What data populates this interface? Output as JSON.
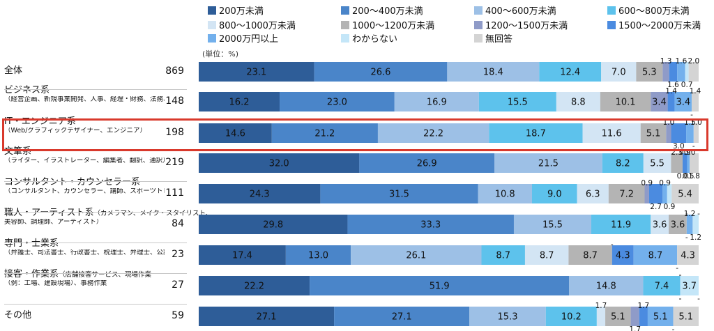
{
  "chart_data": {
    "type": "bar",
    "stacked": true,
    "orientation": "horizontal",
    "unit_label": "(単位：%)",
    "xlim": [
      0,
      100
    ],
    "legend_position": "top",
    "categories": [
      {
        "name": "全体",
        "sub": "",
        "n": "869"
      },
      {
        "name": "ビジネス系",
        "sub": "（経営企画、新規事業開発、人事、経理・財務、法務、広報、マーケティング、営業）",
        "n": "148"
      },
      {
        "name": "IT・エンジニア系",
        "sub": "（Web/グラフィックデザイナー、エンジニア）",
        "n": "198"
      },
      {
        "name": "文筆系",
        "sub": "（ライター、イラストレーター、編集者、翻訳、通訳）",
        "n": "219"
      },
      {
        "name": "コンサルタント・カウンセラー系",
        "sub": "（コンサルタント、カウンセラー、講師、スポーツトレーナー）",
        "n": "111"
      },
      {
        "name": "職人・アーティスト系",
        "inline": "（カメラマン、メイク・スタイリスト、",
        "sub": "美容師、調理師、アーティスト）",
        "n": "84"
      },
      {
        "name": "専門・士業系",
        "sub": "（弁護士、司法書士、行政書士、税理士、弁理士、公認会計士、社労士）",
        "n": "23"
      },
      {
        "name": "接客・作業系",
        "inline": "（店舗接客サービス、現場作業",
        "sub": "（例：工場、建設現場）、事務作業",
        "n": "27"
      },
      {
        "name": "その他",
        "sub": "",
        "n": "59"
      }
    ],
    "series": [
      {
        "name": "200万未満",
        "color": "#2e5d98",
        "values": [
          23.1,
          16.2,
          14.6,
          32.0,
          24.3,
          29.8,
          17.4,
          22.2,
          27.1
        ]
      },
      {
        "name": "200～400万未満",
        "color": "#4a85c9",
        "values": [
          26.6,
          23.0,
          21.2,
          26.9,
          31.5,
          33.3,
          13.0,
          51.9,
          27.1
        ]
      },
      {
        "name": "400～600万未満",
        "color": "#9dc0e6",
        "values": [
          18.4,
          16.9,
          22.2,
          21.5,
          10.8,
          15.5,
          26.1,
          14.8,
          15.3
        ]
      },
      {
        "name": "600～800万未満",
        "color": "#5dc2ec",
        "values": [
          12.4,
          15.5,
          18.7,
          8.2,
          9.0,
          11.9,
          8.7,
          7.4,
          10.2
        ]
      },
      {
        "name": "800～1000万未満",
        "color": "#d3e5f4",
        "values": [
          7.0,
          8.8,
          11.6,
          5.5,
          6.3,
          3.6,
          8.7,
          0,
          1.7
        ]
      },
      {
        "name": "1000～1200万未満",
        "color": "#b4b4b4",
        "values": [
          5.3,
          10.1,
          5.1,
          2.3,
          7.2,
          3.6,
          8.7,
          0,
          5.1
        ]
      },
      {
        "name": "1200～1500万未満",
        "color": "#8f9bc8",
        "values": [
          1.3,
          3.4,
          1.0,
          0.0,
          0.9,
          0,
          0,
          0,
          1.7
        ]
      },
      {
        "name": "1500～2000万未満",
        "color": "#4b8be0",
        "values": [
          1.6,
          1.4,
          3.0,
          0.9,
          2.7,
          0,
          4.3,
          0,
          1.7
        ]
      },
      {
        "name": "2000万円以上",
        "color": "#73b0ec",
        "values": [
          1.6,
          3.4,
          1.5,
          0.5,
          0.9,
          1.2,
          8.7,
          0,
          5.1
        ]
      },
      {
        "name": "わからない",
        "color": "#c4e6f8",
        "values": [
          0.7,
          0,
          0,
          0.0,
          0.9,
          1.2,
          0,
          3.7,
          0
        ]
      },
      {
        "name": "無回答",
        "color": "#d4d4d4",
        "values": [
          2.0,
          1.4,
          1.0,
          1.8,
          5.4,
          0,
          4.3,
          0,
          5.1
        ]
      }
    ],
    "value_labels": [
      [
        "23.1",
        "26.6",
        "18.4",
        "12.4",
        "7.0",
        "5.3",
        "1.3",
        "1.6",
        "1.6",
        "0.7",
        "2.0"
      ],
      [
        "16.2",
        "23.0",
        "16.9",
        "15.5",
        "8.8",
        "10.1",
        "3.4",
        "1.4",
        "3.4",
        "-",
        "1.4"
      ],
      [
        "14.6",
        "21.2",
        "22.2",
        "18.7",
        "11.6",
        "5.1",
        "1.0",
        "3.0",
        "1.5",
        "-",
        "1.0"
      ],
      [
        "32.0",
        "26.9",
        "21.5",
        "8.2",
        "5.5",
        "2.3",
        "0.0",
        "0.9",
        "0.5",
        "0.0",
        "1.8"
      ],
      [
        "24.3",
        "31.5",
        "10.8",
        "9.0",
        "6.3",
        "7.2",
        "0.9",
        "2.7",
        "0.9",
        "0.9",
        "5.4"
      ],
      [
        "29.8",
        "33.3",
        "15.5",
        "11.9",
        "3.6",
        "3.6",
        "-",
        "-",
        "1.2",
        "1.2",
        "-"
      ],
      [
        "17.4",
        "13.0",
        "26.1",
        "8.7",
        "8.7",
        "8.7",
        "-",
        "4.3",
        "8.7",
        "-",
        "4.3"
      ],
      [
        "22.2",
        "51.9",
        "14.8",
        "7.4",
        "-",
        "-",
        "-",
        "-",
        "-",
        "3.7",
        "-"
      ],
      [
        "27.1",
        "27.1",
        "15.3",
        "10.2",
        "1.7",
        "5.1",
        "1.7",
        "1.7",
        "5.1",
        "-",
        "5.1"
      ]
    ],
    "highlighted_category": "IT・エンジニア系",
    "highlight_color": "#d9392c"
  }
}
